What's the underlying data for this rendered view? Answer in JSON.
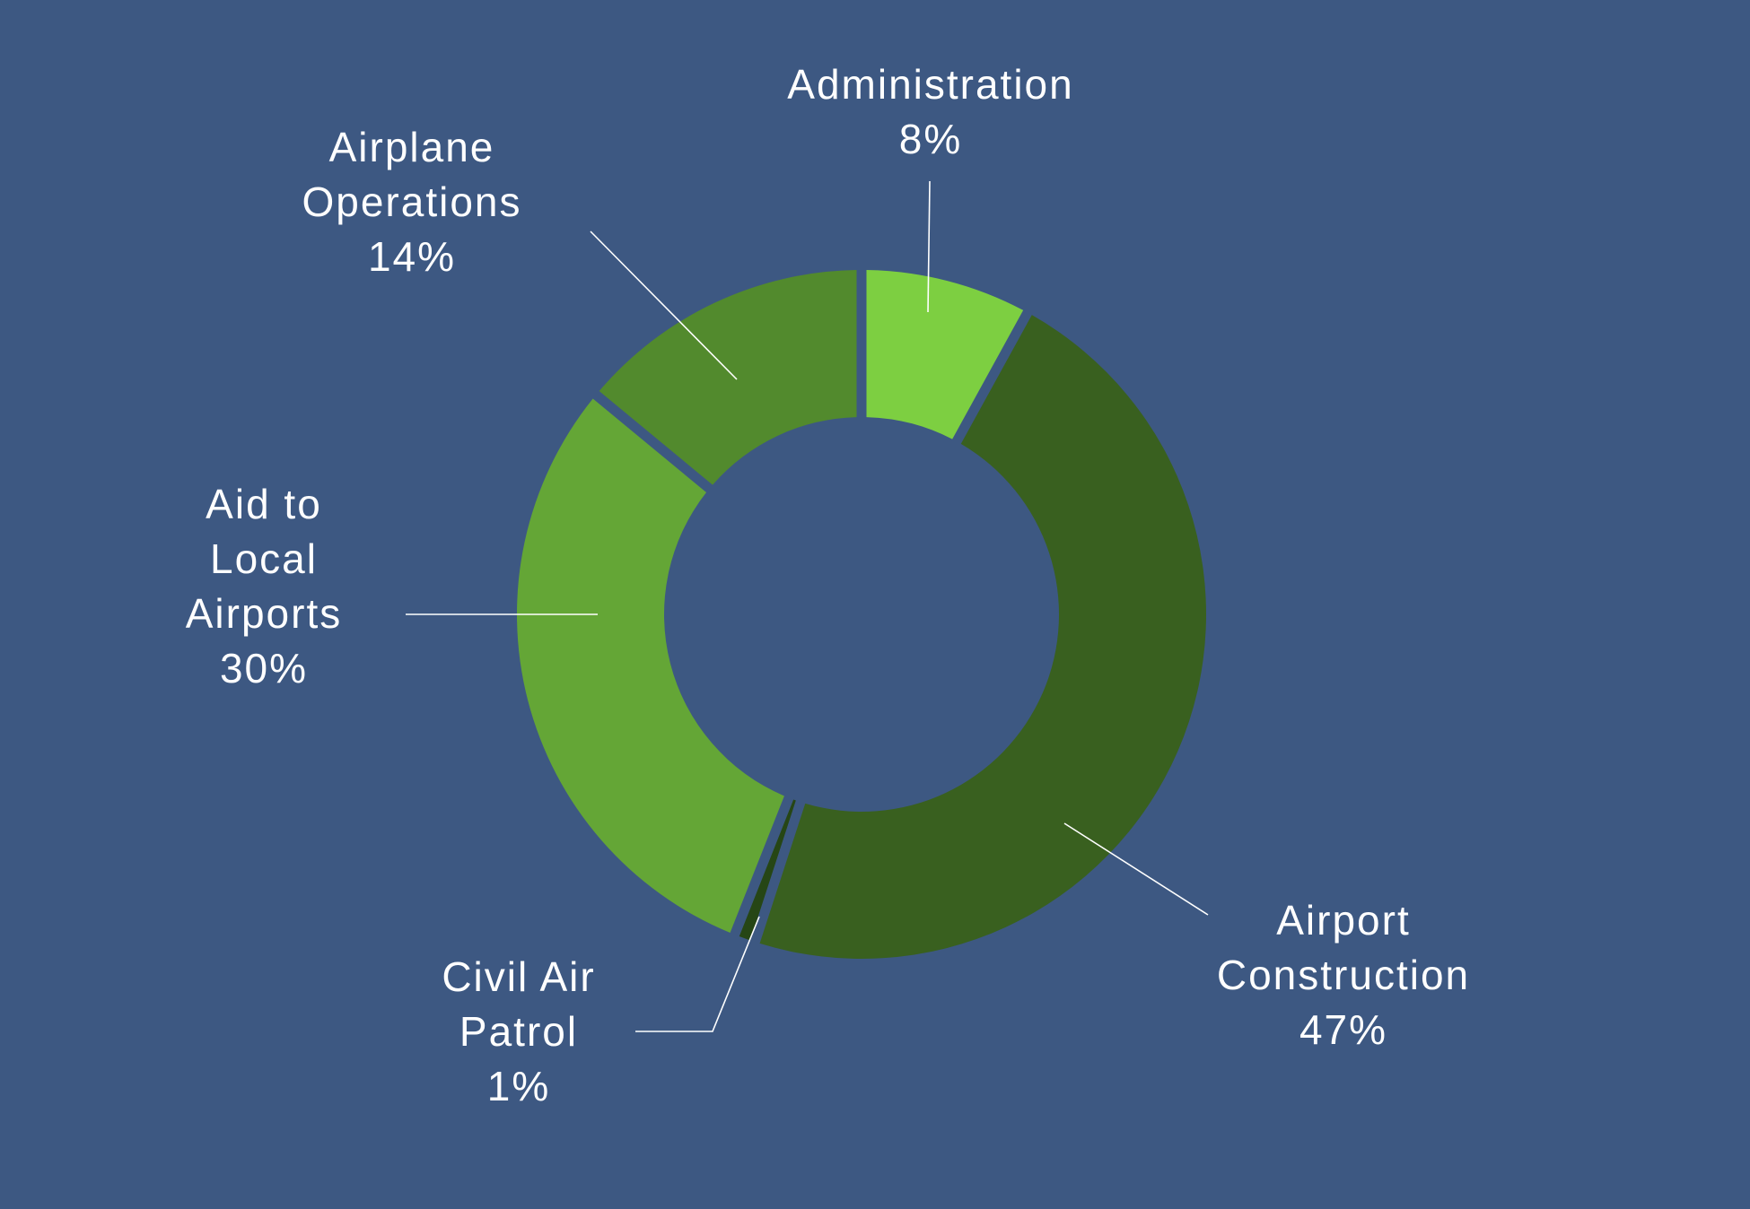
{
  "chart_data": {
    "type": "pie",
    "donut": true,
    "background": "#3d5882",
    "slices": [
      {
        "name": "Administration",
        "label_lines": [
          "Administration",
          "8%"
        ],
        "value": 8,
        "color": "#7dcf41"
      },
      {
        "name": "Airport Construction",
        "label_lines": [
          "Airport",
          "Construction",
          "47%"
        ],
        "value": 47,
        "color": "#39601f"
      },
      {
        "name": "Civil Air Patrol",
        "label_lines": [
          "Civil Air",
          "Patrol",
          "1%"
        ],
        "value": 1,
        "color": "#264615"
      },
      {
        "name": "Aid to Local Airports",
        "label_lines": [
          "Aid to",
          "Local",
          "Airports",
          "30%"
        ],
        "value": 30,
        "color": "#64a636"
      },
      {
        "name": "Airplane Operations",
        "label_lines": [
          "Airplane",
          "Operations",
          "14%"
        ],
        "value": 14,
        "color": "#528a2d"
      }
    ]
  }
}
